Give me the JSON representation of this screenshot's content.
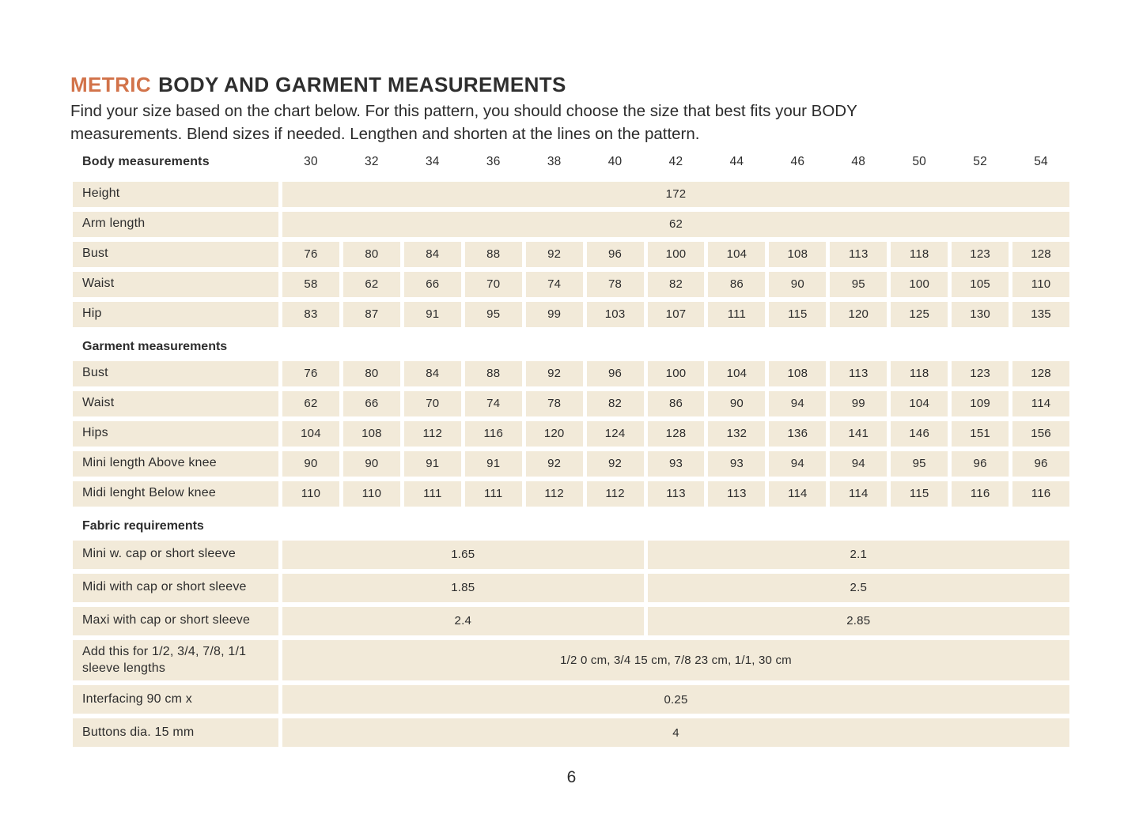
{
  "colors": {
    "accent_orange": "#d2734a",
    "cell_beige": "#f2ead9",
    "text_dark": "#2d2d2d",
    "page_background": "#ffffff"
  },
  "header": {
    "title_highlight": "METRIC",
    "title_rest": "BODY AND GARMENT MEASUREMENTS",
    "intro_line1": "Find your size based on the chart below. For this pattern, you should choose the size that best fits your BODY",
    "intro_line2": "measurements. Blend sizes if needed. Lengthen and shorten at the lines on the pattern."
  },
  "table": {
    "size_header": {
      "label": "Body measurements",
      "sizes": [
        "30",
        "32",
        "34",
        "36",
        "38",
        "40",
        "42",
        "44",
        "46",
        "48",
        "50",
        "52",
        "54"
      ]
    },
    "sections": [
      {
        "heading": null,
        "rows": [
          {
            "label": "Height",
            "type": "full_span",
            "value": "172"
          },
          {
            "label": "Arm length",
            "type": "full_span",
            "value": "62"
          },
          {
            "label": "Bust",
            "type": "cells",
            "values": [
              "76",
              "80",
              "84",
              "88",
              "92",
              "96",
              "100",
              "104",
              "108",
              "113",
              "118",
              "123",
              "128"
            ]
          },
          {
            "label": "Waist",
            "type": "cells",
            "values": [
              "58",
              "62",
              "66",
              "70",
              "74",
              "78",
              "82",
              "86",
              "90",
              "95",
              "100",
              "105",
              "110"
            ]
          },
          {
            "label": "Hip",
            "type": "cells",
            "values": [
              "83",
              "87",
              "91",
              "95",
              "99",
              "103",
              "107",
              "111",
              "115",
              "120",
              "125",
              "130",
              "135"
            ]
          }
        ]
      },
      {
        "heading": "Garment measurements",
        "rows": [
          {
            "label": "Bust",
            "type": "cells",
            "values": [
              "76",
              "80",
              "84",
              "88",
              "92",
              "96",
              "100",
              "104",
              "108",
              "113",
              "118",
              "123",
              "128"
            ]
          },
          {
            "label": "Waist",
            "type": "cells",
            "values": [
              "62",
              "66",
              "70",
              "74",
              "78",
              "82",
              "86",
              "90",
              "94",
              "99",
              "104",
              "109",
              "114"
            ]
          },
          {
            "label": "Hips",
            "type": "cells",
            "values": [
              "104",
              "108",
              "112",
              "116",
              "120",
              "124",
              "128",
              "132",
              "136",
              "141",
              "146",
              "151",
              "156"
            ]
          },
          {
            "label": "Mini length Above knee",
            "type": "cells",
            "values": [
              "90",
              "90",
              "91",
              "91",
              "92",
              "92",
              "93",
              "93",
              "94",
              "94",
              "95",
              "96",
              "96"
            ]
          },
          {
            "label": "Midi lenght Below knee",
            "type": "cells",
            "values": [
              "110",
              "110",
              "111",
              "111",
              "112",
              "112",
              "113",
              "113",
              "114",
              "114",
              "115",
              "116",
              "116"
            ]
          }
        ]
      },
      {
        "heading": "Fabric requirements",
        "rows": [
          {
            "label": "Mini w. cap or short sleeve",
            "type": "split_span",
            "left_value": "1.65",
            "right_value": "2.1"
          },
          {
            "label": "Midi with cap or short sleeve",
            "type": "split_span",
            "left_value": "1.85",
            "right_value": "2.5"
          },
          {
            "label": "Maxi with cap or short sleeve",
            "type": "split_span",
            "left_value": "2.4",
            "right_value": "2.85"
          },
          {
            "label": "Add this for 1/2, 3/4, 7/8, 1/1 sleeve lengths",
            "type": "full_span",
            "value": "1/2 0 cm, 3/4 15 cm, 7/8 23 cm, 1/1, 30 cm"
          },
          {
            "label": "Interfacing 90 cm x",
            "type": "full_span",
            "value": "0.25"
          },
          {
            "label": "Buttons dia. 15 mm",
            "type": "full_span",
            "value": "4"
          }
        ]
      }
    ]
  },
  "footer": {
    "page_number": "6"
  }
}
